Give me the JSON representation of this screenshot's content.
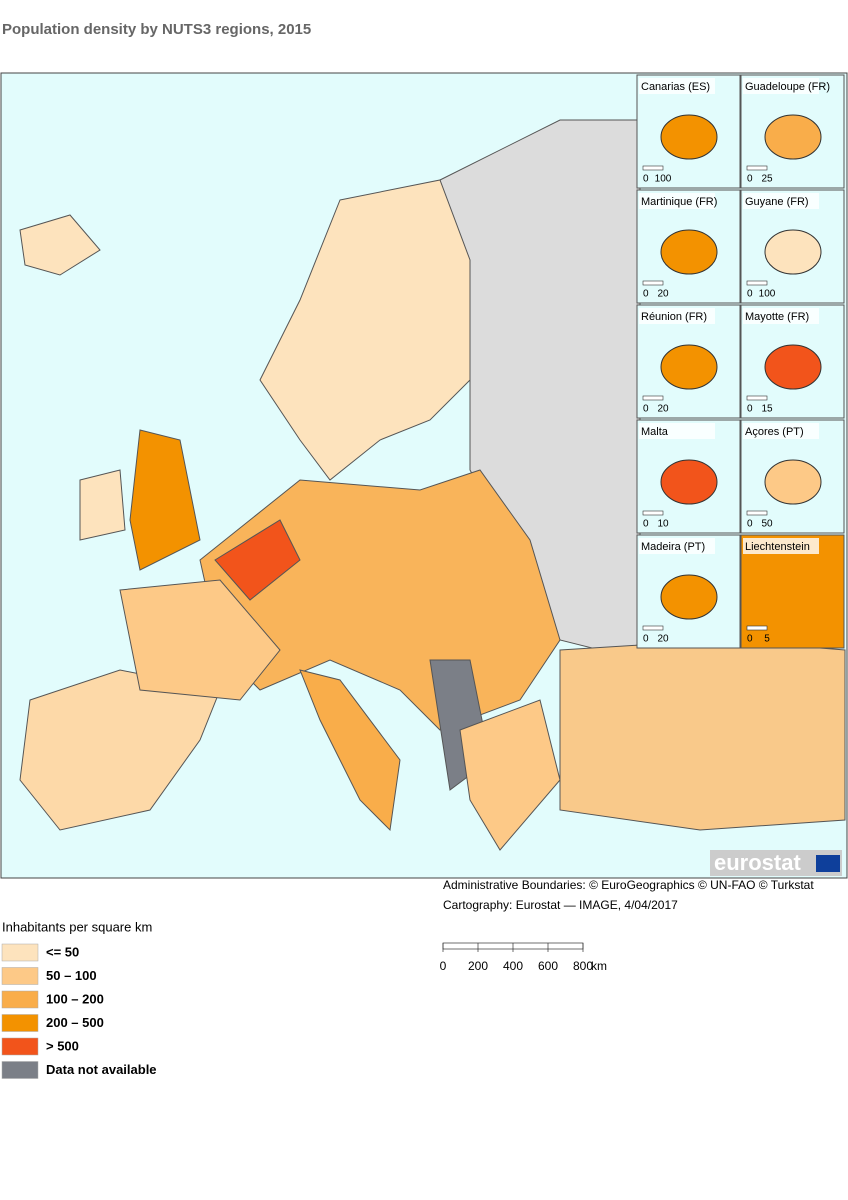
{
  "title": "Population density by NUTS3 regions, 2015",
  "insets": [
    {
      "name": "Canarias (ES)",
      "scale": [
        0,
        100
      ]
    },
    {
      "name": "Guadeloupe (FR)",
      "scale": [
        0,
        25
      ]
    },
    {
      "name": "Martinique (FR)",
      "scale": [
        0,
        20
      ]
    },
    {
      "name": "Guyane (FR)",
      "scale": [
        0,
        100
      ]
    },
    {
      "name": "Réunion (FR)",
      "scale": [
        0,
        20
      ]
    },
    {
      "name": "Mayotte (FR)",
      "scale": [
        0,
        15
      ]
    },
    {
      "name": "Malta",
      "scale": [
        0,
        10
      ]
    },
    {
      "name": "Açores (PT)",
      "scale": [
        0,
        50
      ]
    },
    {
      "name": "Madeira (PT)",
      "scale": [
        0,
        20
      ]
    },
    {
      "name": "Liechtenstein",
      "scale": [
        0,
        5
      ]
    }
  ],
  "logo": "eurostat",
  "credits": [
    "Administrative Boundaries: © EuroGeographics © UN-FAO © Turkstat",
    "Cartography: Eurostat — IMAGE, 4/04/2017"
  ],
  "scale_bar": {
    "ticks": [
      0,
      200,
      400,
      600,
      800
    ],
    "unit": "km"
  },
  "legend": {
    "title": "Inhabitants per square km",
    "items": [
      {
        "label": "<= 50",
        "color": "#fde3bd"
      },
      {
        "label": "50 – 100",
        "color": "#fdc987"
      },
      {
        "label": "100 – 200",
        "color": "#f9ad4a"
      },
      {
        "label": "200 – 500",
        "color": "#f39200"
      },
      {
        "label": "> 500",
        "color": "#f2541b"
      },
      {
        "label": "Data not available",
        "color": "#7b7f87"
      }
    ]
  }
}
